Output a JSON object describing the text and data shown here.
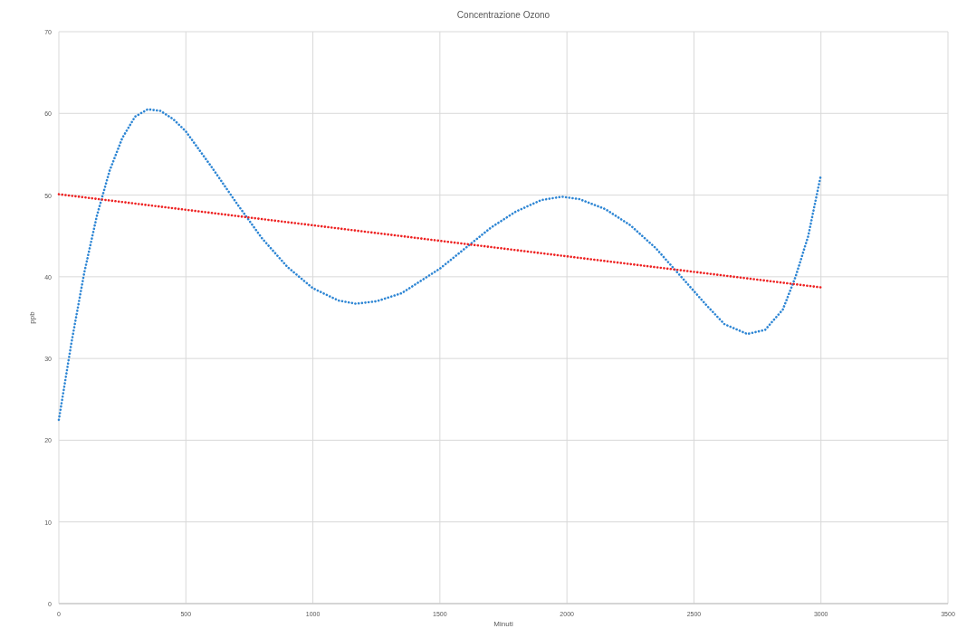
{
  "chart_data": {
    "type": "line",
    "title": "Concentrazione Ozono",
    "xlabel": "Minuti",
    "ylabel": "ppb",
    "xlim": [
      0,
      3500
    ],
    "xticks": [
      0,
      500,
      1000,
      1500,
      2000,
      2500,
      3000,
      3500
    ],
    "ylim": [
      0,
      70
    ],
    "yticks": [
      0,
      10,
      20,
      30,
      40,
      50,
      60,
      70
    ],
    "grid": true,
    "line_style": "dotted",
    "series": [
      {
        "color": "#2e86d4",
        "x": [
          0,
          50,
          100,
          150,
          200,
          250,
          300,
          350,
          400,
          450,
          500,
          600,
          700,
          800,
          900,
          1000,
          1100,
          1170,
          1250,
          1350,
          1450,
          1500,
          1600,
          1700,
          1800,
          1900,
          1980,
          2050,
          2150,
          2250,
          2350,
          2450,
          2550,
          2620,
          2710,
          2780,
          2850,
          2900,
          2950,
          3000
        ],
        "values": [
          22.5,
          32,
          40.5,
          47.5,
          53,
          57,
          59.6,
          60.5,
          60.3,
          59.3,
          57.8,
          53.5,
          49,
          44.7,
          41.2,
          38.6,
          37.1,
          36.7,
          37,
          38,
          40,
          41,
          43.5,
          46,
          48,
          49.4,
          49.8,
          49.5,
          48.3,
          46.3,
          43.5,
          40,
          36.5,
          34.2,
          33,
          33.5,
          36,
          40,
          45,
          52.5
        ]
      },
      {
        "color": "#ee2222",
        "x": [
          0,
          3000
        ],
        "values": [
          50.1,
          38.7
        ]
      }
    ]
  }
}
